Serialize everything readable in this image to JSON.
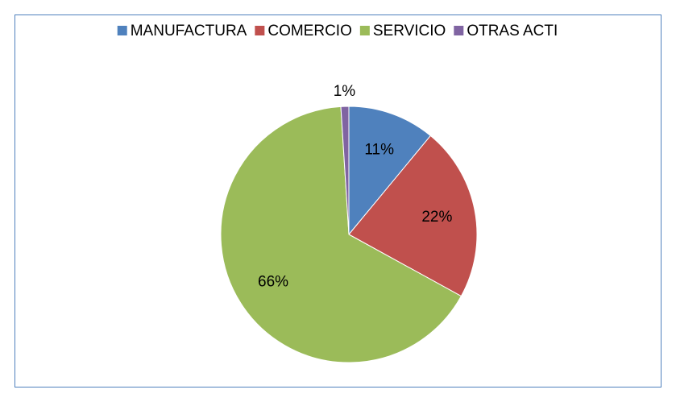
{
  "chart_data": {
    "type": "pie",
    "categories": [
      "MANUFACTURA",
      "COMERCIO",
      "SERVICIO",
      "OTRAS ACTI"
    ],
    "values": [
      11,
      22,
      66,
      1
    ],
    "value_labels": [
      "11%",
      "22%",
      "66%",
      "1%"
    ],
    "colors": [
      "#4f81bd",
      "#c0504d",
      "#9bbb59",
      "#8064a2"
    ],
    "legend": "top"
  }
}
